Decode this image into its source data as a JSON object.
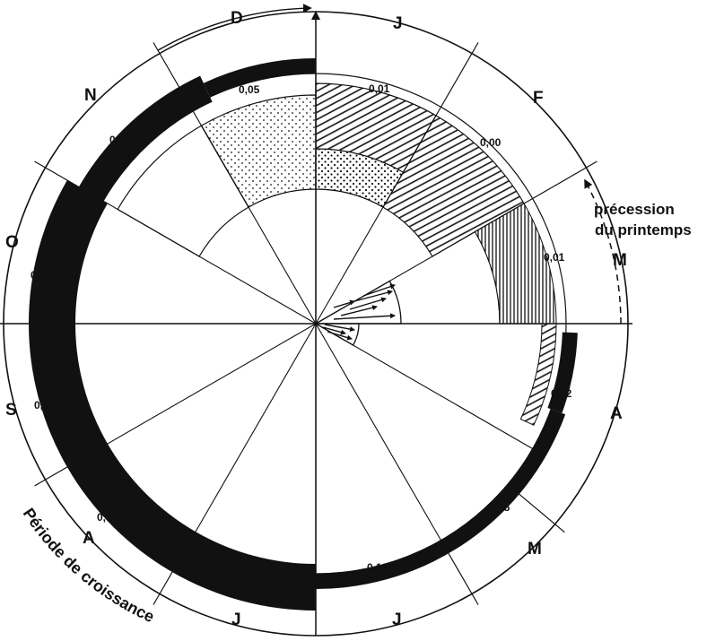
{
  "months": [
    {
      "key": "J1",
      "label": "J",
      "value": "0,01"
    },
    {
      "key": "F",
      "label": "F",
      "value": "0,00"
    },
    {
      "key": "M1",
      "label": "M",
      "value": "0,01"
    },
    {
      "key": "A1",
      "label": "A",
      "value": "0,12"
    },
    {
      "key": "M2",
      "label": "M",
      "value": "0,15"
    },
    {
      "key": "J2",
      "label": "J",
      "value": "0,13"
    },
    {
      "key": "J3",
      "label": "J",
      "value": "0,39"
    },
    {
      "key": "A2",
      "label": "A",
      "value": "0,55"
    },
    {
      "key": "S",
      "label": "S",
      "value": "0,44"
    },
    {
      "key": "O",
      "label": "O",
      "value": "0,35"
    },
    {
      "key": "N",
      "label": "N",
      "value": "0,16"
    },
    {
      "key": "D",
      "label": "D",
      "value": "0,05"
    }
  ],
  "annotations": {
    "precession_line1": "précession",
    "precession_line2": "du printemps",
    "growth_period": "Période de croissance"
  },
  "colors": {
    "ink": "#111111",
    "paper": "#ffffff"
  }
}
